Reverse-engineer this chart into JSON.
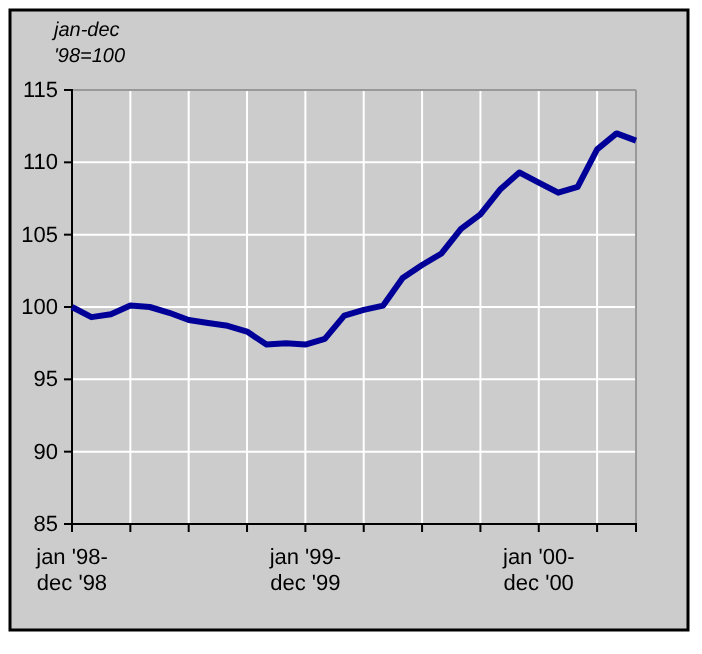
{
  "chart_data": {
    "type": "line",
    "ylabel": "jan-dec '98=100",
    "categories": [
      "jan '98-dec '98",
      null,
      null,
      null,
      null,
      null,
      null,
      null,
      null,
      null,
      null,
      null,
      "jan '99-dec '99",
      null,
      null,
      null,
      null,
      null,
      null,
      null,
      null,
      null,
      null,
      null,
      "jan '00-dec '00",
      null,
      null,
      null,
      null,
      null
    ],
    "series": [
      {
        "color": "#000099",
        "values": [
          100.0,
          99.3,
          99.5,
          100.1,
          100.0,
          99.6,
          99.1,
          98.9,
          98.7,
          98.3,
          97.4,
          97.5,
          97.4,
          97.8,
          99.4,
          99.8,
          100.1,
          102.0,
          102.9,
          103.7,
          105.4,
          106.4,
          108.1,
          109.3,
          108.6,
          107.9,
          108.3,
          110.9,
          112.0,
          111.5
        ]
      }
    ],
    "ylim": [
      85,
      115
    ],
    "yticks": [
      85,
      90,
      95,
      100,
      105,
      110,
      115
    ],
    "grid": true,
    "marker": "none",
    "line_style": "solid"
  }
}
